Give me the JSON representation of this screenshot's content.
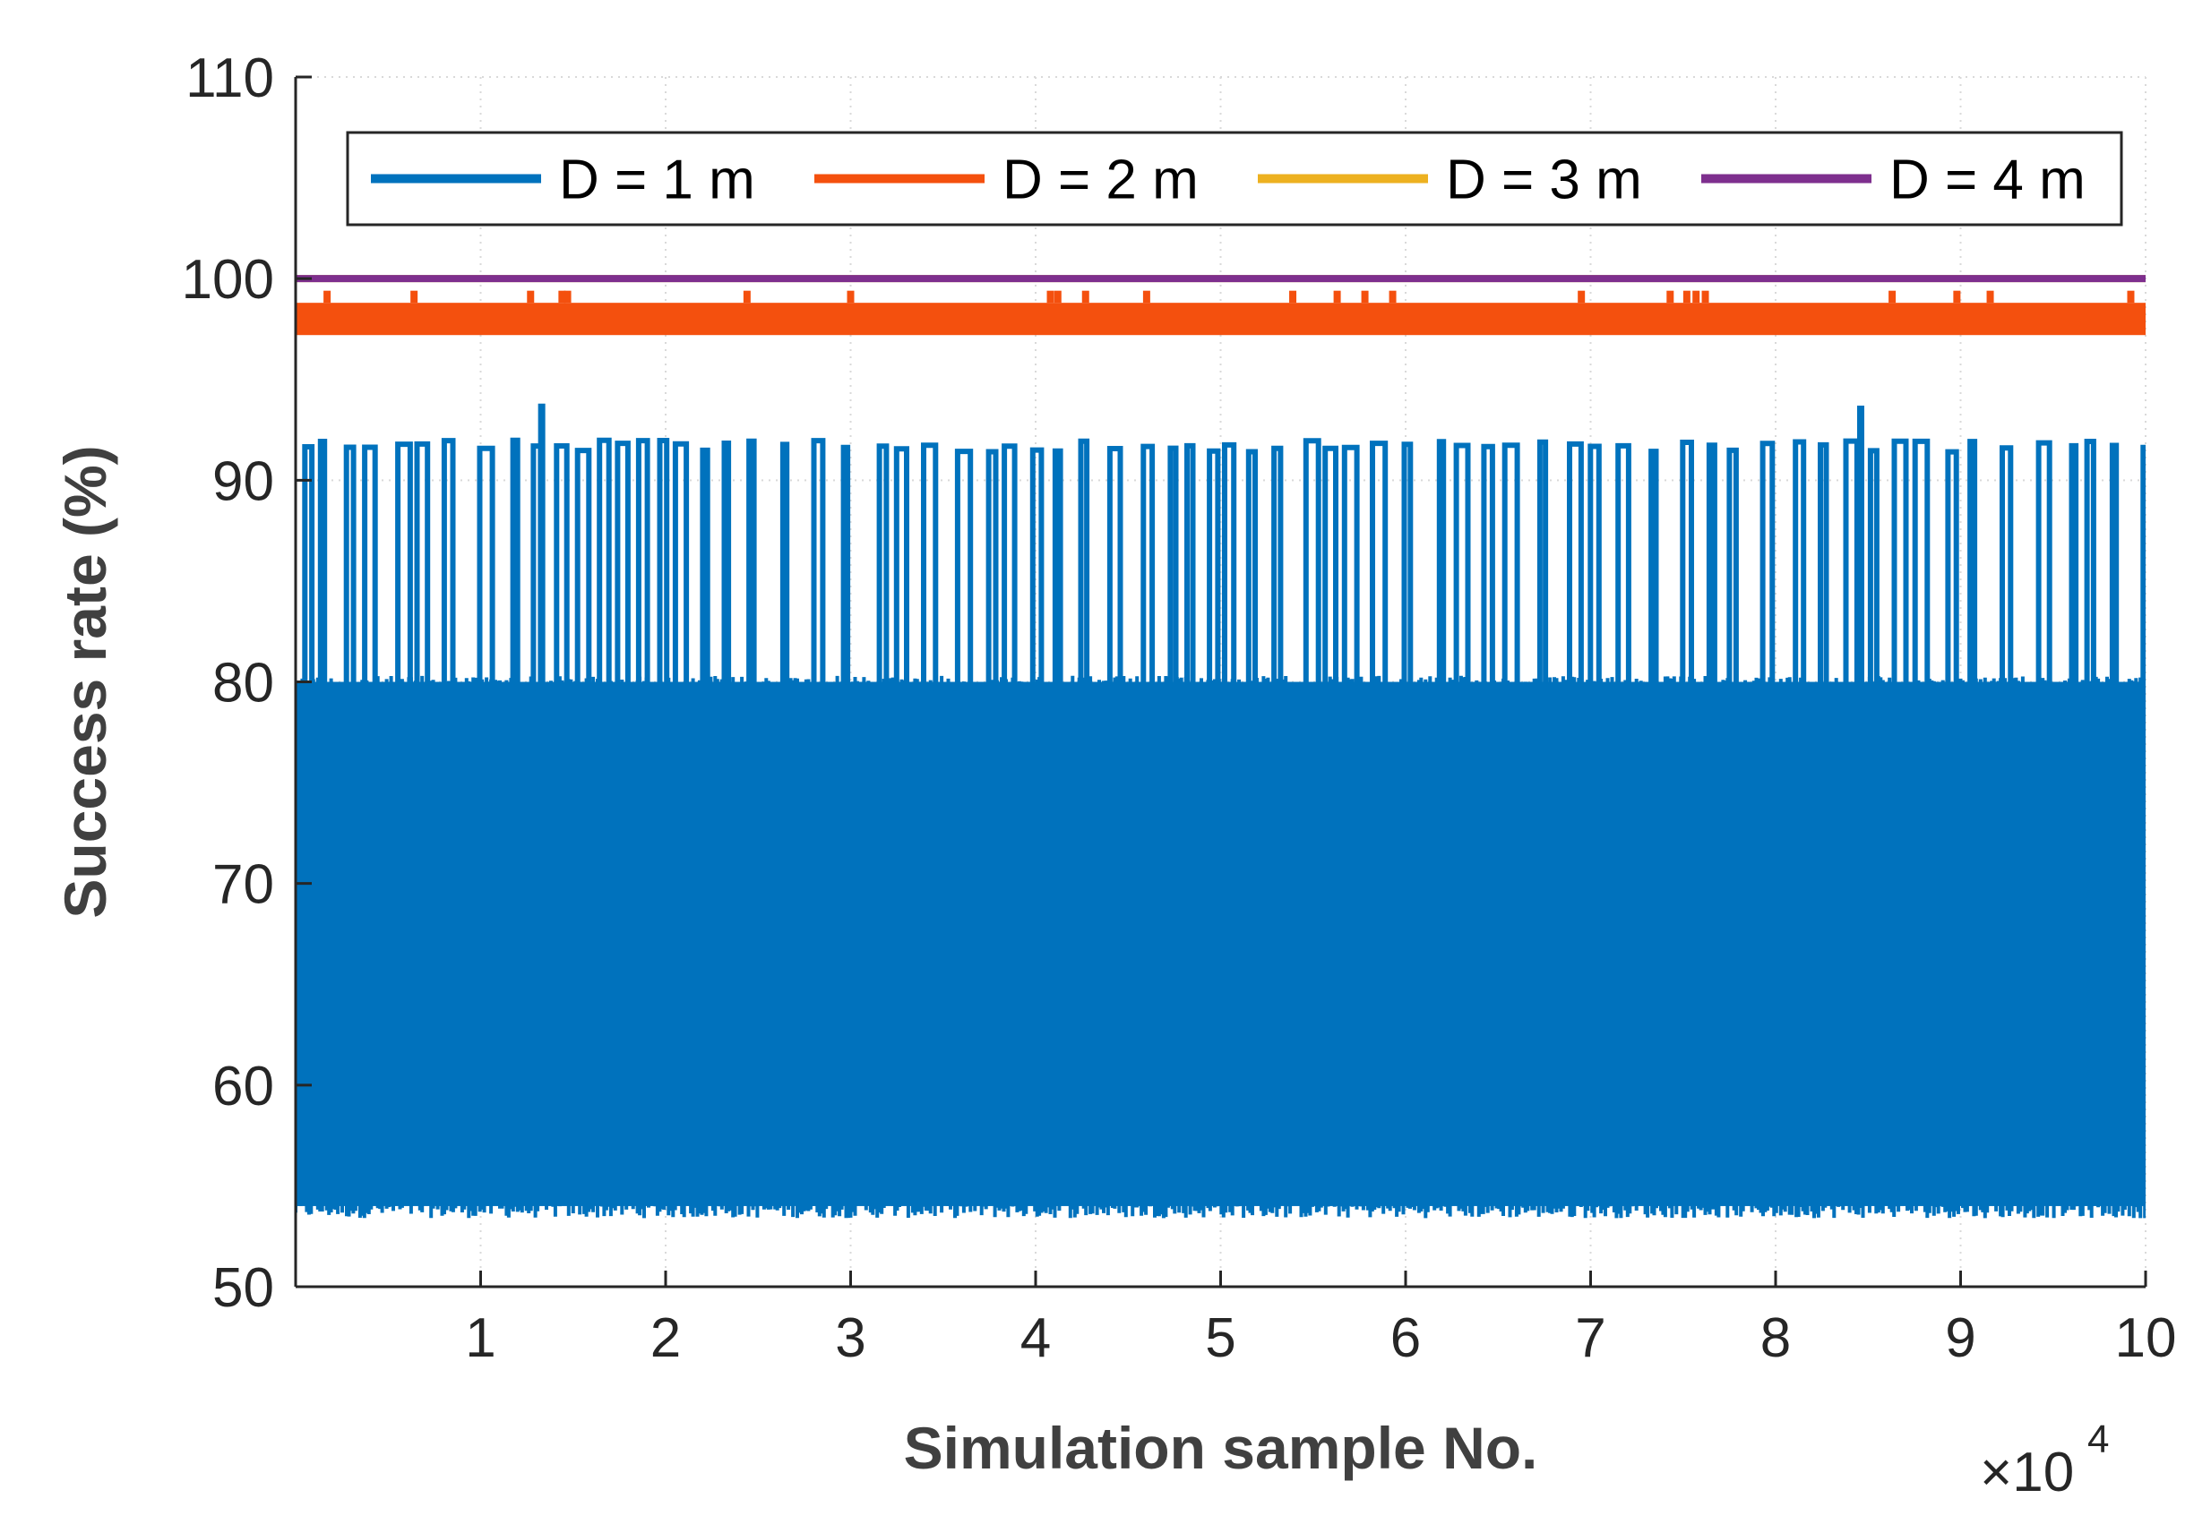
{
  "chart_data": {
    "type": "line",
    "xlabel": "Simulation sample No.",
    "ylabel": "Success rate (%)",
    "x_exponent_base": "×10",
    "x_exponent_power": "4",
    "xlim": [
      0,
      10
    ],
    "ylim": [
      50,
      110
    ],
    "x_ticks": [
      1,
      2,
      3,
      4,
      5,
      6,
      7,
      8,
      9,
      10
    ],
    "y_ticks": [
      50,
      60,
      70,
      80,
      90,
      100,
      110
    ],
    "grid": true,
    "legend_position": "top",
    "series": [
      {
        "name": "D = 1 m",
        "color": "#0072BD",
        "band_min": 54,
        "band_max": 80,
        "spike_max": 92,
        "peak_points": [
          {
            "x": 1.33,
            "y": 93.8
          },
          {
            "x": 8.46,
            "y": 93.7
          }
        ]
      },
      {
        "name": "D = 2 m",
        "color": "#F4500E",
        "band_min": 97.2,
        "band_max": 98.8,
        "spike_max": 99.4,
        "spike_x": [
          0.17,
          0.64,
          1.27,
          1.44,
          1.47,
          2.44,
          3.0,
          4.08,
          4.12,
          4.27,
          4.6,
          5.39,
          5.63,
          5.78,
          5.93,
          6.95,
          7.43,
          7.52,
          7.57,
          7.62,
          8.63,
          8.98,
          9.16,
          9.92
        ]
      },
      {
        "name": "D = 3 m",
        "color": "#EDB120",
        "value": 100
      },
      {
        "name": "D = 4 m",
        "color": "#7E2F8E",
        "value": 100
      }
    ]
  }
}
